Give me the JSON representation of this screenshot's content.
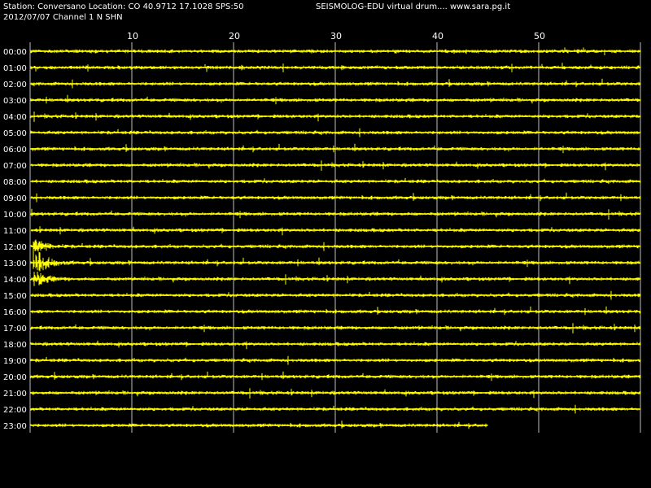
{
  "header": {
    "station_line": "Station: Conversano Location: CO 40.9712 17.1028 SPS:50",
    "date_line": "2012/07/07  Channel 1 N SHN",
    "brand": "SEISMOLOG-EDU virtual drum.... www.sara.pg.it"
  },
  "chart_data": {
    "type": "line",
    "xlabel": "",
    "ylabel": "",
    "x_ticks": [
      "10",
      "20",
      "30",
      "40",
      "50"
    ],
    "x_tick_values": [
      10,
      20,
      30,
      40,
      50
    ],
    "xlim": [
      0,
      60
    ],
    "rows": [
      "00:00",
      "01:00",
      "02:00",
      "03:00",
      "04:00",
      "05:00",
      "06:00",
      "07:00",
      "08:00",
      "09:00",
      "10:00",
      "11:00",
      "12:00",
      "13:00",
      "14:00",
      "15:00",
      "16:00",
      "17:00",
      "18:00",
      "19:00",
      "20:00",
      "21:00",
      "22:00",
      "23:00"
    ],
    "last_row_end_minute": 45,
    "events": [
      {
        "row": "13:00",
        "minute": 0.8,
        "description_visible": false
      }
    ],
    "grid": true,
    "trace_color": "#ffff00",
    "grid_color": "#bfbfbf",
    "background": "#000000"
  }
}
